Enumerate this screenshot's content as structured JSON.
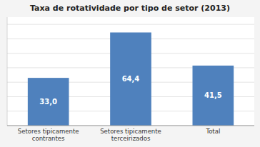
{
  "chart_data": {
    "type": "bar",
    "title": "Taxa de rotatividade por tipo de setor (2013)",
    "categories": [
      "Setores tipicamente\ncontrantes",
      "Setores tipicamente\nterceirizados",
      "Total"
    ],
    "values": [
      33.0,
      64.4,
      41.5
    ],
    "value_labels": [
      "33,0",
      "64,4",
      "41,5"
    ],
    "data_labels": true,
    "color": "#4f81bd",
    "ylim": [
      0,
      75
    ],
    "yticks": [
      0,
      10,
      20,
      30,
      40,
      50,
      60,
      70
    ],
    "grid": true,
    "tick_labels": "x"
  }
}
